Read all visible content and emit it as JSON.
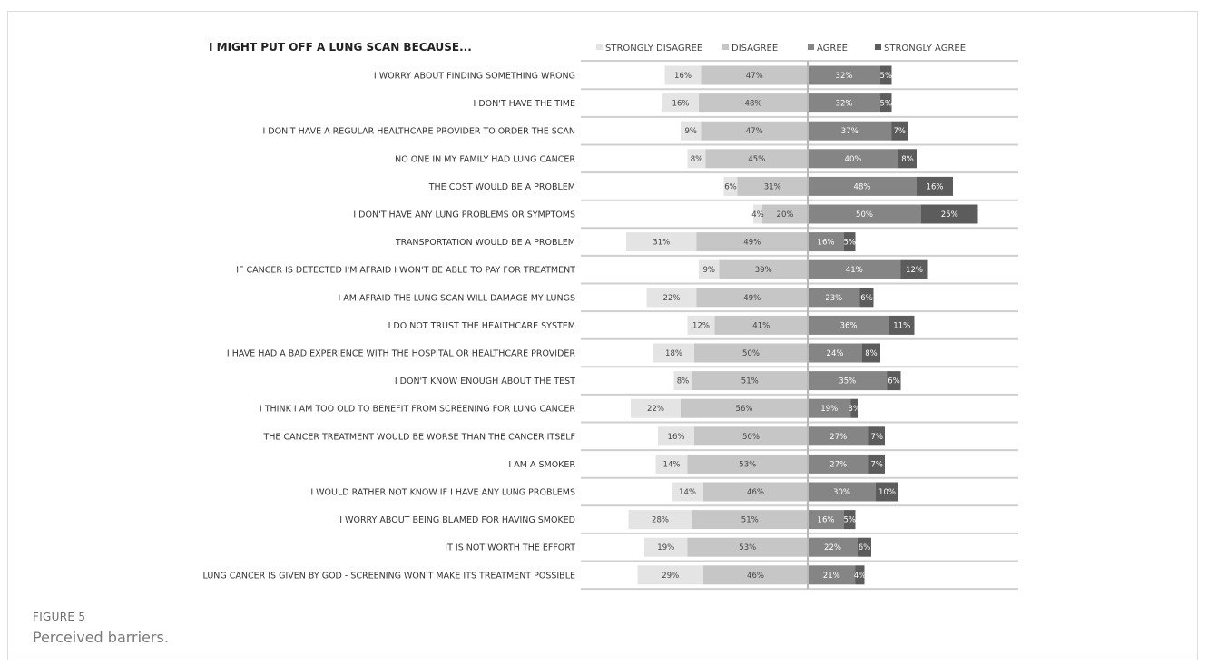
{
  "figure": {
    "label": "FIGURE 5",
    "caption": "Perceived barriers."
  },
  "colors": {
    "strongly_disagree": "#e4e4e4",
    "disagree": "#c6c6c6",
    "agree": "#858585",
    "strongly_agree": "#5c5c5c",
    "gridline": "#cfcfcf",
    "axis": "#b8b8b8",
    "label_text": "#333333",
    "value_text_light": "#ffffff",
    "value_text_dark": "#444444"
  },
  "chart_data": {
    "type": "bar",
    "subtype": "diverging-stacked-horizontal",
    "title": "I MIGHT PUT OFF A LUNG SCAN BECAUSE...",
    "legend_position": "top",
    "series": [
      {
        "name": "STRONGLY DISAGREE",
        "key": "strongly_disagree",
        "side": "negative",
        "values": [
          16,
          16,
          9,
          8,
          6,
          4,
          31,
          9,
          22,
          12,
          18,
          8,
          22,
          16,
          14,
          14,
          28,
          19,
          29
        ]
      },
      {
        "name": "DISAGREE",
        "key": "disagree",
        "side": "negative",
        "values": [
          47,
          48,
          47,
          45,
          31,
          20,
          49,
          39,
          49,
          41,
          50,
          51,
          56,
          50,
          53,
          46,
          51,
          53,
          46
        ]
      },
      {
        "name": "AGREE",
        "key": "agree",
        "side": "positive",
        "values": [
          32,
          32,
          37,
          40,
          48,
          50,
          16,
          41,
          23,
          36,
          24,
          35,
          19,
          27,
          27,
          30,
          16,
          22,
          21
        ]
      },
      {
        "name": "STRONGLY AGREE",
        "key": "strongly_agree",
        "side": "positive",
        "values": [
          5,
          5,
          7,
          8,
          16,
          25,
          5,
          12,
          6,
          11,
          8,
          6,
          3,
          7,
          7,
          10,
          5,
          6,
          4
        ]
      }
    ],
    "categories": [
      "I WORRY ABOUT FINDING SOMETHING WRONG",
      "I DON'T HAVE THE TIME",
      "I DON'T HAVE A REGULAR HEALTHCARE PROVIDER TO ORDER THE SCAN",
      "NO ONE IN MY FAMILY HAD LUNG CANCER",
      "THE COST WOULD BE A PROBLEM",
      "I DON'T HAVE ANY LUNG PROBLEMS OR SYMPTOMS",
      "TRANSPORTATION WOULD BE A PROBLEM",
      "IF CANCER IS DETECTED I'M AFRAID I WON'T BE ABLE TO PAY FOR TREATMENT",
      "I AM AFRAID THE LUNG SCAN WILL DAMAGE MY LUNGS",
      "I DO NOT TRUST THE HEALTHCARE SYSTEM",
      "I HAVE HAD A BAD EXPERIENCE WITH THE HOSPITAL OR HEALTHCARE PROVIDER",
      "I DON'T KNOW ENOUGH ABOUT THE TEST",
      "I THINK I AM TOO OLD TO BENEFIT FROM SCREENING FOR LUNG CANCER",
      "THE CANCER TREATMENT WOULD BE WORSE THAN THE CANCER ITSELF",
      "I AM A SMOKER",
      "I WOULD RATHER NOT KNOW IF I HAVE ANY LUNG PROBLEMS",
      "I WORRY ABOUT BEING BLAMED FOR HAVING SMOKED",
      "IT IS NOT WORTH THE EFFORT",
      "LUNG CANCER IS GIVEN BY GOD - SCREENING WON'T MAKE ITS TREATMENT POSSIBLE"
    ],
    "value_suffix": "%"
  }
}
